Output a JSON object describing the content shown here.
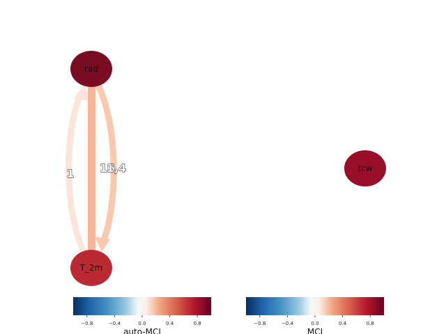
{
  "nodes": [
    {
      "id": "rad",
      "label": "rad",
      "color": "#7a0d22"
    },
    {
      "id": "T_2m",
      "label": "T_2m",
      "color": "#bb2a33"
    },
    {
      "id": "tcw",
      "label": "tcw",
      "color": "#990f29"
    }
  ],
  "edges": [
    {
      "from": "rad",
      "to": "T_2m",
      "label": "1",
      "color": "#fbe5da",
      "kind": "curved-directed"
    },
    {
      "from": "rad",
      "to": "T_2m",
      "label": "",
      "color": "#f6b597",
      "kind": "contemporaneous"
    },
    {
      "from": "rad",
      "to": "T_2m",
      "label": "1,4",
      "color": "#f9c8ad",
      "kind": "curved-directed"
    }
  ],
  "edge_label_overlap": "16",
  "colorbars": [
    {
      "id": "node-colorbar",
      "label": "auto-MCI",
      "ticks": [
        "−0.8",
        "−0.4",
        "0.0",
        "0.4",
        "0.8"
      ],
      "cmap": "RdBu_r",
      "range": [
        -1,
        1
      ]
    },
    {
      "id": "link-colorbar",
      "label": "MCI",
      "ticks": [
        "−0.8",
        "−0.4",
        "0.0",
        "0.4",
        "0.8"
      ],
      "cmap": "RdBu_r",
      "range": [
        -1,
        1
      ]
    }
  ]
}
